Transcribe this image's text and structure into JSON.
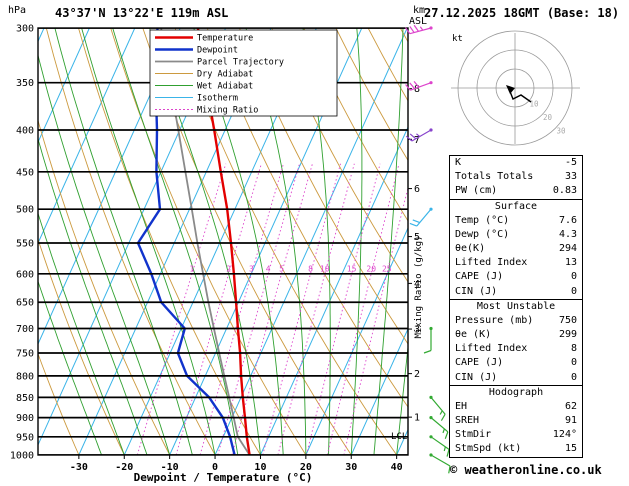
{
  "header": {
    "station": "43°37'N 13°22'E 119m ASL",
    "datetime": "27.12.2025 18GMT (Base: 18)"
  },
  "axes": {
    "pressure_unit": "hPa",
    "pressure_ticks": [
      300,
      350,
      400,
      450,
      500,
      550,
      600,
      650,
      700,
      750,
      800,
      850,
      900,
      950,
      1000
    ],
    "temp_ticks": [
      -30,
      -20,
      -10,
      0,
      10,
      20,
      30,
      40
    ],
    "xlabel": "Dewpoint / Temperature (°C)",
    "km_unit_top": "km",
    "km_unit_bottom": "ASL",
    "km_ticks": [
      1,
      2,
      3,
      4,
      5,
      6,
      7,
      8
    ],
    "mixing_ratio_label": "Mixing Ratio (g/kg)",
    "mixing_ratio_values": [
      1,
      2,
      3,
      4,
      5,
      8,
      10,
      15,
      20,
      25
    ],
    "lcl_label": "LCL"
  },
  "legend": [
    {
      "label": "Temperature",
      "color": "#e30000",
      "style": "solid",
      "width": 2.4
    },
    {
      "label": "Dewpoint",
      "color": "#1133cc",
      "style": "solid",
      "width": 2.4
    },
    {
      "label": "Parcel Trajectory",
      "color": "#8a8a8a",
      "style": "solid",
      "width": 1.8
    },
    {
      "label": "Dry Adiabat",
      "color": "#cc9a3f",
      "style": "solid",
      "width": 1
    },
    {
      "label": "Wet Adiabat",
      "color": "#30a030",
      "style": "solid",
      "width": 1
    },
    {
      "label": "Isotherm",
      "color": "#3ab4e8",
      "style": "solid",
      "width": 1
    },
    {
      "label": "Mixing Ratio",
      "color": "#dd44cc",
      "style": "dotted",
      "width": 1
    }
  ],
  "chart_data": {
    "type": "line",
    "subtype": "skew-t-log-p-sounding",
    "title": "Skew-T log-P sounding 43°37'N 13°22'E 119m ASL 27.12.2025 18GMT",
    "y_axis": {
      "label": "hPa",
      "scale": "log",
      "min": 300,
      "max": 1000
    },
    "x_axis": {
      "label": "Dewpoint / Temperature (°C)",
      "min": -39,
      "max": 42
    },
    "lcl_hPa": 945,
    "pressure_hPa": [
      1000,
      950,
      900,
      850,
      800,
      750,
      700,
      650,
      600,
      550,
      500,
      450,
      400,
      350,
      300
    ],
    "series": [
      {
        "name": "temperature-curve",
        "label": "Temperature (°C)",
        "values": [
          7.6,
          5.2,
          2.9,
          0.4,
          -2.1,
          -4.6,
          -7.5,
          -10.5,
          -13.8,
          -17.5,
          -21.7,
          -26.8,
          -32.4,
          -38.9,
          -46.1
        ]
      },
      {
        "name": "dewpoint-curve",
        "label": "Dewpoint (°C)",
        "values": [
          4.3,
          1.5,
          -2.0,
          -7.0,
          -14.0,
          -18.3,
          -19.2,
          -27.0,
          -32.0,
          -38.0,
          -36.5,
          -41.0,
          -45.0,
          -50.0,
          -55.0
        ]
      },
      {
        "name": "parcel-trajectory-curve",
        "label": "Parcel Trajectory (°C)",
        "values": [
          7.6,
          3.2,
          0.4,
          -2.6,
          -5.8,
          -9.2,
          -12.8,
          -16.6,
          -20.6,
          -24.9,
          -29.5,
          -34.6,
          -40.3,
          -46.8,
          -54.2
        ]
      }
    ],
    "winds": [
      {
        "p": 300,
        "dir": 255,
        "spd": 35,
        "color": "#dd44cc"
      },
      {
        "p": 350,
        "dir": 250,
        "spd": 30,
        "color": "#dd44cc"
      },
      {
        "p": 400,
        "dir": 240,
        "spd": 25,
        "color": "#8844cc"
      },
      {
        "p": 500,
        "dir": 220,
        "spd": 20,
        "color": "#3ab4e8"
      },
      {
        "p": 700,
        "dir": 180,
        "spd": 10,
        "color": "#33aa33"
      },
      {
        "p": 850,
        "dir": 140,
        "spd": 15,
        "color": "#33aa33"
      },
      {
        "p": 900,
        "dir": 130,
        "spd": 15,
        "color": "#33aa33"
      },
      {
        "p": 950,
        "dir": 125,
        "spd": 15,
        "color": "#33aa33"
      },
      {
        "p": 1000,
        "dir": 120,
        "spd": 10,
        "color": "#33aa33"
      }
    ]
  },
  "hodograph": {
    "unit": "kt",
    "rings": [
      10,
      20,
      30
    ]
  },
  "table": {
    "sections": [
      {
        "title": "",
        "rows": [
          [
            "K",
            "-5"
          ],
          [
            "Totals Totals",
            "33"
          ],
          [
            "PW (cm)",
            "0.83"
          ]
        ]
      },
      {
        "title": "Surface",
        "rows": [
          [
            "Temp (°C)",
            "7.6"
          ],
          [
            "Dewp (°C)",
            "4.3"
          ],
          [
            "θe(K)",
            "294"
          ],
          [
            "Lifted Index",
            "13"
          ],
          [
            "CAPE (J)",
            "0"
          ],
          [
            "CIN (J)",
            "0"
          ]
        ]
      },
      {
        "title": "Most Unstable",
        "rows": [
          [
            "Pressure (mb)",
            "750"
          ],
          [
            "θe (K)",
            "299"
          ],
          [
            "Lifted Index",
            "8"
          ],
          [
            "CAPE (J)",
            "0"
          ],
          [
            "CIN (J)",
            "0"
          ]
        ]
      },
      {
        "title": "Hodograph",
        "rows": [
          [
            "EH",
            "62"
          ],
          [
            "SREH",
            "91"
          ],
          [
            "StmDir",
            "124°"
          ],
          [
            "StmSpd (kt)",
            "15"
          ]
        ]
      }
    ]
  },
  "footer": {
    "copyright": "© weatheronline.co.uk"
  }
}
